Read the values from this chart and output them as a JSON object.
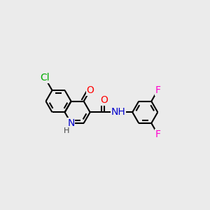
{
  "bg_color": "#ebebeb",
  "bond_color": "#000000",
  "bond_width": 1.5,
  "atom_colors": {
    "N": "#0000cc",
    "O": "#ff0000",
    "Cl": "#00aa00",
    "F": "#ff00cc"
  },
  "font_size": 10
}
